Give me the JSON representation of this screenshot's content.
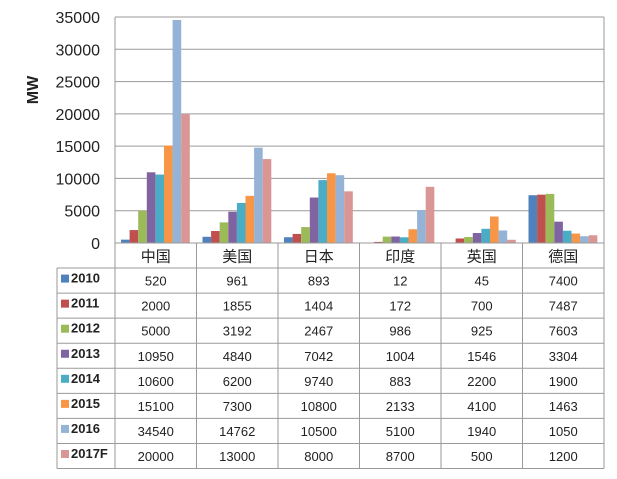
{
  "chart_data": {
    "type": "bar",
    "title": "",
    "xlabel": "",
    "ylabel": "MW",
    "ylim": [
      0,
      35000
    ],
    "yticks": [
      0,
      5000,
      10000,
      15000,
      20000,
      25000,
      30000,
      35000
    ],
    "grid": true,
    "legend": "data-table-left",
    "categories": [
      "中国",
      "美国",
      "日本",
      "印度",
      "英国",
      "德国"
    ],
    "series": [
      {
        "name": "2010",
        "color": "#4F81BD",
        "values": [
          520,
          961,
          893,
          12,
          45,
          7400
        ]
      },
      {
        "name": "2011",
        "color": "#C0504D",
        "values": [
          2000,
          1855,
          1404,
          172,
          700,
          7487
        ]
      },
      {
        "name": "2012",
        "color": "#9BBB59",
        "values": [
          5000,
          3192,
          2467,
          986,
          925,
          7603
        ]
      },
      {
        "name": "2013",
        "color": "#8064A2",
        "values": [
          10950,
          4840,
          7042,
          1004,
          1546,
          3304
        ]
      },
      {
        "name": "2014",
        "color": "#4BACC6",
        "values": [
          10600,
          6200,
          9740,
          883,
          2200,
          1900
        ]
      },
      {
        "name": "2015",
        "color": "#F79646",
        "values": [
          15100,
          7300,
          10800,
          2133,
          4100,
          1463
        ]
      },
      {
        "name": "2016",
        "color": "#95B3D7",
        "values": [
          34540,
          14762,
          10500,
          5100,
          1940,
          1050
        ]
      },
      {
        "name": "2017F",
        "color": "#D99694",
        "values": [
          20000,
          13000,
          8000,
          8700,
          500,
          1200
        ]
      }
    ]
  }
}
